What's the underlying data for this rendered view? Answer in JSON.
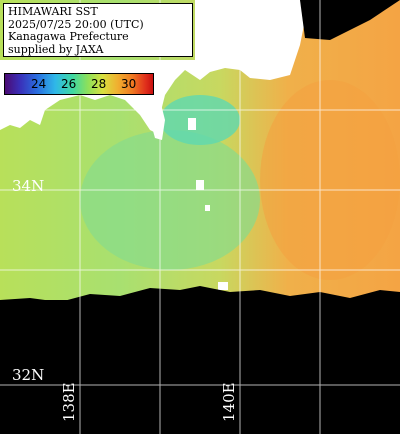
{
  "info": {
    "line1": "HIMAWARI SST",
    "line2": "2025/07/25 20:00 (UTC)",
    "line3": "Kanagawa Prefecture",
    "line4": "supplied by JAXA"
  },
  "colorbar": {
    "ticks": [
      "24",
      "26",
      "28",
      "30"
    ],
    "colors": [
      "#4b0b73",
      "#2a6fe0",
      "#40d8a0",
      "#d8e040",
      "#f07a22",
      "#c81010"
    ]
  },
  "grid": {
    "lat_labels": [
      "34N",
      "32N"
    ],
    "lon_labels": [
      "138E",
      "140E"
    ]
  },
  "colors": {
    "land": "#ffffff",
    "no_data": "#000000",
    "grid": "#ffffff"
  }
}
